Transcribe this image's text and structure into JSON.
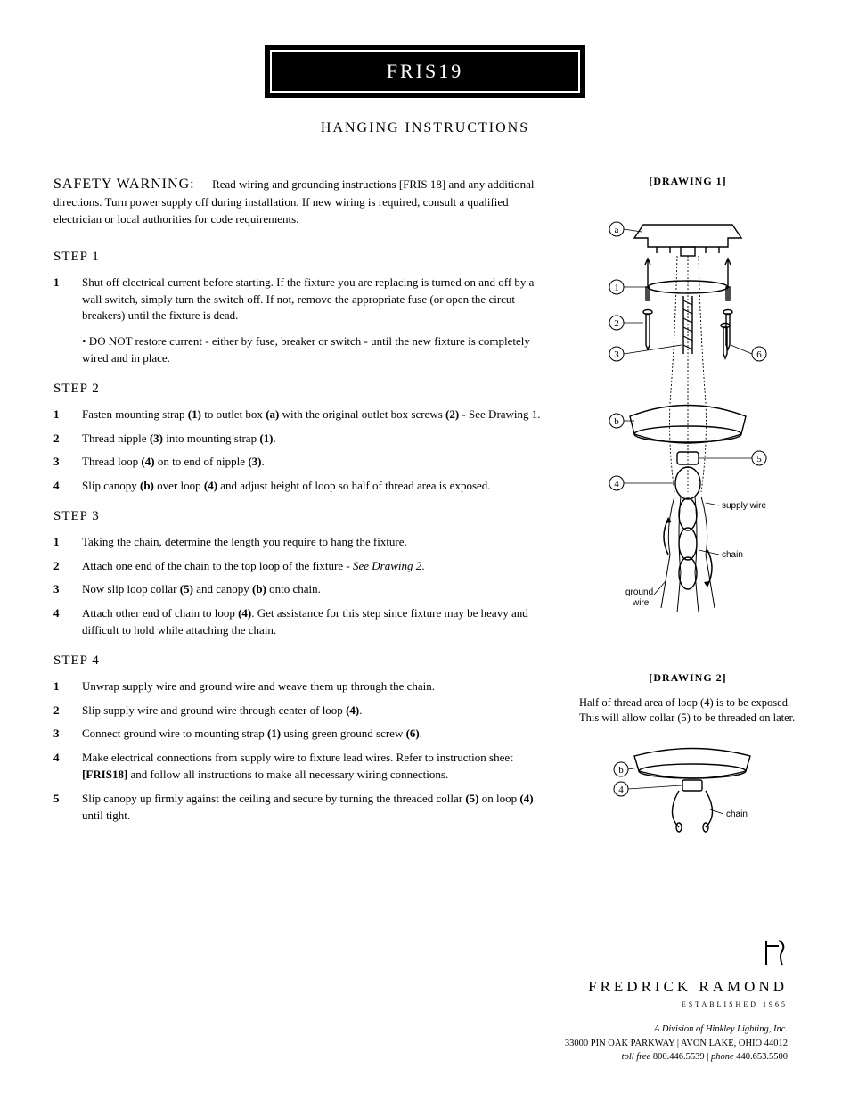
{
  "title": "FRIS19",
  "subtitle": "HANGING INSTRUCTIONS",
  "warning": {
    "head": "SAFETY WARNING:",
    "body": "Read wiring and grounding instructions [FRIS 18] and any additional directions. Turn power supply off during installation. If new wiring is required, consult a qualified electrician or local authorities for code requirements."
  },
  "steps": [
    {
      "head": "STEP 1",
      "items": [
        {
          "n": "1",
          "html": "Shut off electrical current before starting. If the fixture you are replacing is turned on and off by a wall switch, simply turn the switch off. If not, remove the appropriate fuse (or open the circut breakers) until the fixture is dead."
        }
      ],
      "note": "• DO NOT restore current - either by fuse, breaker or switch - until the new fixture is completely wired and in place."
    },
    {
      "head": "STEP 2",
      "items": [
        {
          "n": "1",
          "html": "Fasten mounting strap <b>(1)</b> to outlet box <b>(a)</b> with the original outlet box screws <b>(2)</b> - See Drawing 1."
        },
        {
          "n": "2",
          "html": "Thread nipple <b>(3)</b> into mounting strap <b>(1)</b>."
        },
        {
          "n": "3",
          "html": "Thread loop <b>(4)</b> on to end of nipple <b>(3)</b>."
        },
        {
          "n": "4",
          "html": "Slip canopy <b>(b)</b> over loop <b>(4)</b> and adjust height of loop so half of thread area is exposed."
        }
      ]
    },
    {
      "head": "STEP 3",
      "items": [
        {
          "n": "1",
          "html": "Taking the chain, determine the length you require to hang the fixture."
        },
        {
          "n": "2",
          "html": "Attach one end of the chain to the top loop of the fixture - <em>See Drawing 2</em>."
        },
        {
          "n": "3",
          "html": "Now slip loop collar <b>(5)</b> and canopy <b>(b)</b> onto chain."
        },
        {
          "n": "4",
          "html": "Attach other end of chain to loop <b>(4)</b>. Get assistance for this step since fixture may be heavy and difficult to hold while attaching the chain."
        }
      ]
    },
    {
      "head": "STEP 4",
      "items": [
        {
          "n": "1",
          "html": "Unwrap supply wire and ground wire and weave them up through the chain."
        },
        {
          "n": "2",
          "html": "Slip supply wire and ground wire through center of loop <b>(4)</b>."
        },
        {
          "n": "3",
          "html": "Connect ground wire to mounting strap <b>(1)</b> using green ground screw <b>(6)</b>."
        },
        {
          "n": "4",
          "html": "Make electrical connections from supply wire to fixture lead wires. Refer to instruction sheet <b>[FRIS18]</b> and follow all instructions to make all necessary wiring connections."
        },
        {
          "n": "5",
          "html": "Slip canopy up firmly against the ceiling and secure by turning the threaded collar <b>(5)</b> on loop <b>(4)</b> until tight."
        }
      ]
    }
  ],
  "drawing1": {
    "label": "[DRAWING 1]",
    "callouts": {
      "a": "a",
      "b": "b",
      "1": "1",
      "2": "2",
      "3": "3",
      "4": "4",
      "5": "5",
      "6": "6",
      "supply_wire": "supply wire",
      "chain": "chain",
      "ground_wire": "ground\nwire"
    }
  },
  "drawing2": {
    "label": "[DRAWING 2]",
    "caption": "Half of thread area of loop (4) is to be exposed. This will allow collar (5) to be threaded on later.",
    "callouts": {
      "b": "b",
      "4": "4",
      "chain": "chain"
    }
  },
  "footer": {
    "brand": "FREDRICK RAMOND",
    "established": "ESTABLISHED 1965",
    "division": "A Division of Hinkley Lighting, Inc.",
    "address": "33000 PIN OAK PARKWAY | AVON LAKE, OHIO 44012",
    "phone_line": "toll free 800.446.5539 | phone 440.653.5500"
  },
  "colors": {
    "text": "#000000",
    "bg": "#ffffff",
    "title_bg": "#000000",
    "title_fg": "#ffffff"
  }
}
